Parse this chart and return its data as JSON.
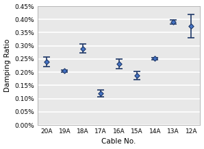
{
  "categories": [
    "20A",
    "19A",
    "18A",
    "17A",
    "16A",
    "15A",
    "14A",
    "13A",
    "12A"
  ],
  "means": [
    0.0024,
    0.00205,
    0.0029,
    0.0012,
    0.00232,
    0.00188,
    0.00252,
    0.0039,
    0.00375
  ],
  "errors": [
    0.00018,
    4e-05,
    0.00018,
    0.00012,
    0.00018,
    0.00015,
    4e-05,
    8e-05,
    0.00045
  ],
  "xlabel": "Cable No.",
  "ylabel": "Damping Ratio",
  "ylim": [
    0.0,
    0.0045
  ],
  "yticks": [
    0.0,
    0.0005,
    0.001,
    0.0015,
    0.002,
    0.0025,
    0.003,
    0.0035,
    0.004,
    0.0045
  ],
  "marker_color": "#1f3868",
  "marker_face": "#4472c4",
  "line_color": "#1f3868",
  "bg_color": "#e8e8e8",
  "grid_color": "#ffffff",
  "label_fontsize": 7.5,
  "tick_fontsize": 6.5
}
